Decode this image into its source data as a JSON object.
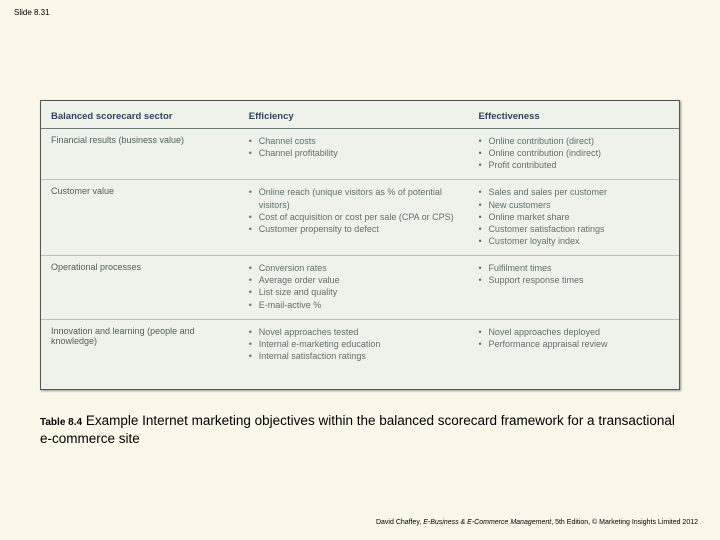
{
  "slide_number": "Slide 8.31",
  "table": {
    "background_color": "#eef2eb",
    "border_color": "#555555",
    "header_text_color": "#2e4560",
    "body_text_color": "#60706c",
    "header_rule_color": "#6a7c78",
    "row_rule_color": "#b8c3bd",
    "columns": [
      "Balanced scorecard sector",
      "Efficiency",
      "Effectiveness"
    ],
    "rows": [
      {
        "label": "Financial results (business value)",
        "efficiency": [
          "Channel costs",
          "Channel profitability"
        ],
        "effectiveness": [
          "Online contribution (direct)",
          "Online contribution (indirect)",
          "Profit contributed"
        ]
      },
      {
        "label": "Customer value",
        "efficiency": [
          "Online reach (unique visitors as % of potential visitors)",
          "Cost of acquisition or cost per sale (CPA or CPS)",
          "Customer propensity to defect"
        ],
        "effectiveness": [
          "Sales and sales per customer",
          "New customers",
          "Online market share",
          "Customer satisfaction ratings",
          "Customer loyalty index"
        ]
      },
      {
        "label": "Operational processes",
        "efficiency": [
          "Conversion rates",
          "Average order value",
          "List size and quality",
          "E-mail-active %"
        ],
        "effectiveness": [
          "Fulfilment times",
          "Support response times"
        ]
      },
      {
        "label": "Innovation and learning (people and knowledge)",
        "efficiency": [
          "Novel approaches tested",
          "Internal e-marketing education",
          "Internal satisfaction ratings"
        ],
        "effectiveness": [
          "Novel approaches deployed",
          "Performance appraisal review"
        ]
      }
    ]
  },
  "caption": {
    "label": "Table 8.4",
    "text": "Example Internet marketing objectives within the balanced scorecard framework for a transactional e-commerce site"
  },
  "footer": {
    "author": "David Chaffey, ",
    "title": "E-Business & E-Commerce Management",
    "rest": ", 5th Edition, © Marketing Insights Limited 2012"
  },
  "page_background": "#faf6e8"
}
